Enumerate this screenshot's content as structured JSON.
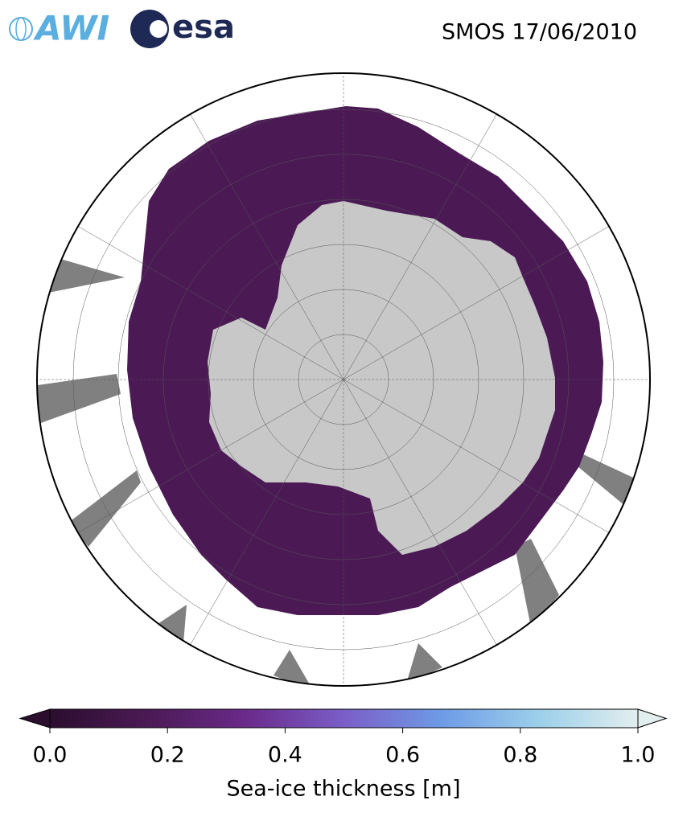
{
  "header": {
    "logos": [
      "AWI",
      "esa"
    ],
    "title": "SMOS 17/06/2010"
  },
  "colorbar": {
    "label": "Sea-ice thickness [m]",
    "lim": [
      0,
      1
    ],
    "ticks": [
      {
        "value": 0,
        "label": "0.0"
      },
      {
        "value": 0.2,
        "label": "0.2"
      },
      {
        "value": 0.4,
        "label": "0.4"
      },
      {
        "value": 0.6,
        "label": "0.6"
      },
      {
        "value": 0.8,
        "label": "0.8"
      },
      {
        "value": 1,
        "label": "1.0"
      }
    ],
    "colors": [
      "#2b0d2e",
      "#4b1a55",
      "#6a2a8a",
      "#7a5ec8",
      "#6e9be6",
      "#9cd0ea",
      "#e3eeee"
    ]
  }
}
